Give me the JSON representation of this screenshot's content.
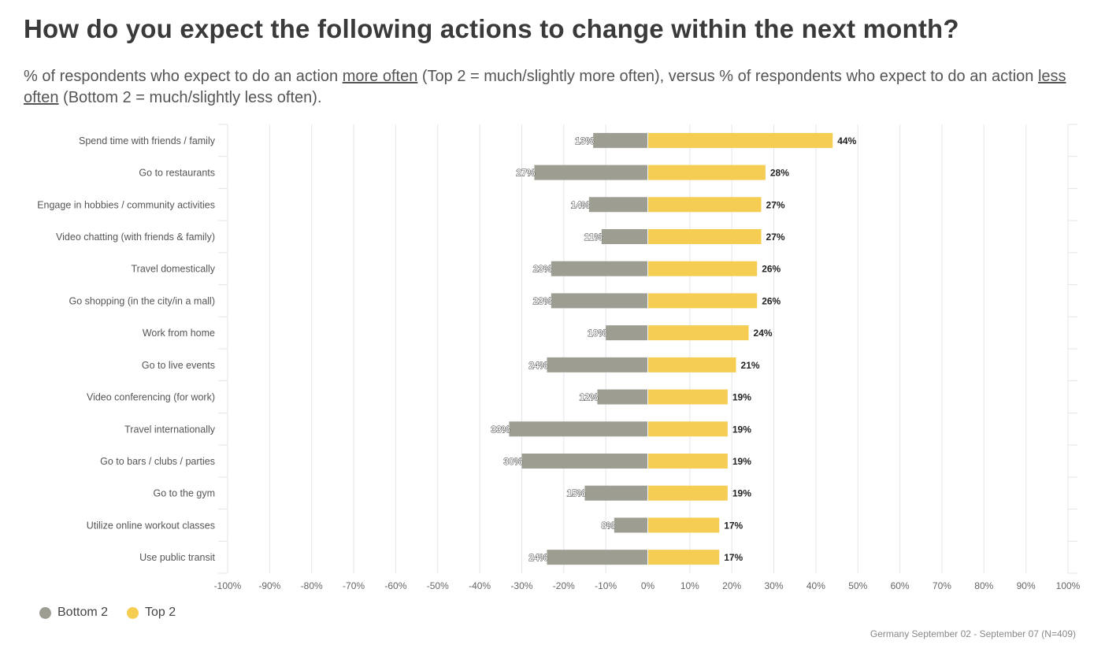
{
  "header": {
    "title": "How do you expect the following actions to change within the next month?",
    "subtitle_part1": "% of respondents who expect to do an action ",
    "subtitle_more": "more often",
    "subtitle_part2": " (Top 2 = much/slightly more often), versus % of respondents who expect to do an action ",
    "subtitle_less": "less often",
    "subtitle_part3": " (Bottom 2 = much/slightly less often)."
  },
  "legend": {
    "bottom_label": "Bottom 2",
    "top_label": "Top 2"
  },
  "colors": {
    "bottom": "#9e9d92",
    "top": "#f5cd52"
  },
  "footer": "Germany September 02 - September 07 (N=409)",
  "chart_data": {
    "type": "bar",
    "orientation": "horizontal-diverging",
    "title": "How do you expect the following actions to change within the next month?",
    "xlim": [
      -100,
      100
    ],
    "xticks": [
      "-100%",
      "-90%",
      "-80%",
      "-70%",
      "-60%",
      "-50%",
      "-40%",
      "-30%",
      "-20%",
      "-10%",
      "0%",
      "10%",
      "20%",
      "30%",
      "40%",
      "50%",
      "60%",
      "70%",
      "80%",
      "90%",
      "100%"
    ],
    "categories": [
      "Spend time with friends / family",
      "Go to restaurants",
      "Engage in hobbies / community activities",
      "Video chatting (with friends & family)",
      "Travel domestically",
      "Go shopping (in the city/in a mall)",
      "Work from home",
      "Go to live events",
      "Video conferencing (for work)",
      "Travel internationally",
      "Go to bars / clubs / parties",
      "Go to the gym",
      "Utilize online workout classes",
      "Use public transit"
    ],
    "series": [
      {
        "name": "Bottom 2",
        "values": [
          13,
          27,
          14,
          11,
          23,
          23,
          10,
          24,
          12,
          33,
          30,
          15,
          8,
          24
        ],
        "labels": [
          "13%",
          "27%",
          "14%",
          "11%",
          "23%",
          "23%",
          "10%",
          "24%",
          "12%",
          "33%",
          "30%",
          "15%",
          "8%",
          "24%"
        ]
      },
      {
        "name": "Top 2",
        "values": [
          44,
          28,
          27,
          27,
          26,
          26,
          24,
          21,
          19,
          19,
          19,
          19,
          17,
          17
        ],
        "labels": [
          "44%",
          "28%",
          "27%",
          "27%",
          "26%",
          "26%",
          "24%",
          "21%",
          "19%",
          "19%",
          "19%",
          "19%",
          "17%",
          "17%"
        ]
      }
    ]
  }
}
